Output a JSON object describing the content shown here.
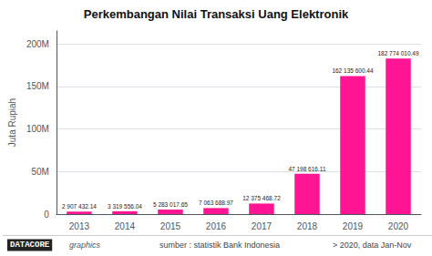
{
  "chart_data": {
    "type": "bar",
    "title": "Perkembangan Nilai Transaksi Uang Elektronik",
    "ylabel": "Juta Rupiah",
    "categories": [
      "2013",
      "2014",
      "2015",
      "2016",
      "2017",
      "2018",
      "2019",
      "2020"
    ],
    "values": [
      2907432.14,
      3319556.04,
      5283017.65,
      7063688.97,
      12375468.72,
      47198616.11,
      162135600.44,
      182774010.49
    ],
    "value_labels": [
      "2 907 432.14",
      "3 319 556.04",
      "5 283 017.65",
      "7 063 688.97",
      "12 375 468.72",
      "47 198 616.11",
      "162 135 600.44",
      "182 774 010.49"
    ],
    "color": "#FF1493",
    "ylim": [
      0,
      215000000
    ],
    "yticks": [
      0,
      {
        "value": 50000000,
        "label": "50M"
      },
      {
        "value": 100000000,
        "label": "100M"
      },
      {
        "value": 150000000,
        "label": "150M"
      },
      {
        "value": 200000000,
        "label": "200M"
      }
    ],
    "grid": true,
    "data_labels": true,
    "annotations": [
      "DATACORE",
      "graphics",
      "sumber : statistik Bank Indonesia",
      "> 2020, data Jan-Nov"
    ]
  }
}
